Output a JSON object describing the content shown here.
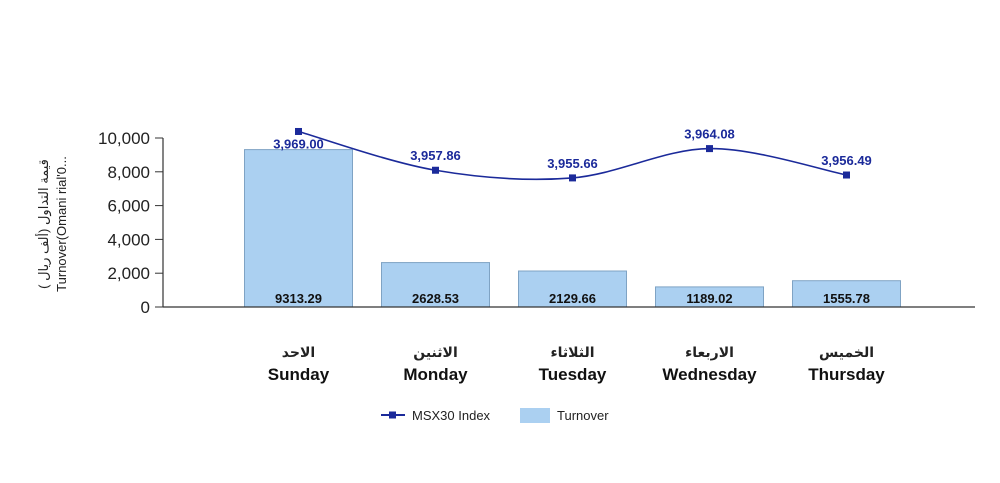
{
  "chart_data": {
    "type": "bar",
    "categories": [
      {
        "ar": "الاحد",
        "en": "Sunday"
      },
      {
        "ar": "الاثنين",
        "en": "Monday"
      },
      {
        "ar": "الثلاثاء",
        "en": "Tuesday"
      },
      {
        "ar": "الاربعاء",
        "en": "Wednesday"
      },
      {
        "ar": "الخميس",
        "en": "Thursday"
      }
    ],
    "series": [
      {
        "name": "Turnover",
        "kind": "bar",
        "color": "#abd0f1",
        "values": [
          9313.29,
          2628.53,
          2129.66,
          1189.02,
          1555.78
        ],
        "labels": [
          "9313.29",
          "2628.53",
          "2129.66",
          "1189.02",
          "1555.78"
        ]
      },
      {
        "name": "MSX30 Index",
        "kind": "line",
        "color": "#1b2a9a",
        "values": [
          3969.0,
          3957.86,
          3955.66,
          3964.08,
          3956.49
        ],
        "labels": [
          "3,969.00",
          "3,957.86",
          "3,955.66",
          "3,964.08",
          "3,956.49"
        ],
        "secondary_axis_range": [
          3945,
          3970
        ]
      }
    ],
    "ylabel_lines": [
      "( قيمة التداول (ألف ريال",
      "Turnover(Omani rial'0..."
    ],
    "ylim": [
      0,
      10000
    ],
    "yticks": [
      "0",
      "2,000",
      "4,000",
      "6,000",
      "8,000",
      "10,000"
    ],
    "ytick_values": [
      0,
      2000,
      4000,
      6000,
      8000,
      10000
    ],
    "legend_position": "bottom",
    "grid": false
  }
}
